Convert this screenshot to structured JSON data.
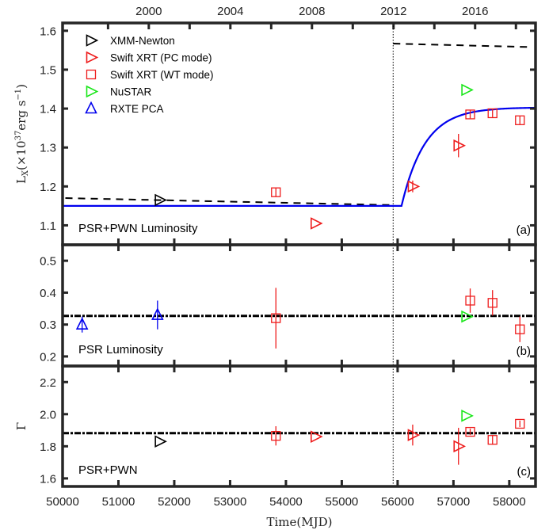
{
  "chart_data": {
    "type": "scatter",
    "xlabel": "Time(MJD)",
    "xlim": [
      50000,
      58470
    ],
    "x_ticks": [
      50000,
      51000,
      52000,
      53000,
      54000,
      55000,
      56000,
      57000,
      58000
    ],
    "x_tick_labels": [
      "50000",
      "51000",
      "52000",
      "53000",
      "54000",
      "55000",
      "56000",
      "57000",
      "58000"
    ],
    "top_axis": {
      "tick_labels": [
        "2000",
        "2004",
        "2008",
        "2012",
        "2016"
      ],
      "label_mjd": [
        51544,
        53005,
        54466,
        55927,
        57388
      ],
      "minor_tick_mjd": [
        50814,
        51544,
        52275,
        53005,
        53736,
        54466,
        55197,
        55927,
        56658,
        57388,
        58119
      ]
    },
    "event_line_mjd": 55920,
    "legend": {
      "placement": "top-left",
      "entries": [
        {
          "key": "xmm",
          "label": "XMM-Newton",
          "marker": "triangle-right",
          "color": "#000000"
        },
        {
          "key": "pc",
          "label": "Swift XRT (PC mode)",
          "marker": "triangle-right",
          "color": "#ee1c1c"
        },
        {
          "key": "wt",
          "label": "Swift XRT (WT mode)",
          "marker": "square",
          "color": "#ee1c1c"
        },
        {
          "key": "nustar",
          "label": "NuSTAR",
          "marker": "triangle-right",
          "color": "#19e619"
        },
        {
          "key": "rxte",
          "label": "RXTE PCA",
          "marker": "triangle-up",
          "color": "#0000ee"
        }
      ]
    },
    "panels": [
      {
        "id": "a",
        "panel_label": "(a)",
        "annotation": "PSR+PWN Luminosity",
        "ylabel": "L_X (×10^37 erg s^-1)",
        "ylabel_main": "L",
        "ylabel_sub": "X",
        "ylabel_rest": "(×10",
        "ylabel_exp": "37",
        "ylabel_unit": "erg s",
        "ylabel_unit_exp": "−1",
        "ylabel_close": ")",
        "ylim": [
          1.05,
          1.62
        ],
        "y_ticks": [
          1.1,
          1.2,
          1.3,
          1.4,
          1.5,
          1.6
        ],
        "y_tick_labels": [
          "1.1",
          "1.2",
          "1.3",
          "1.4",
          "1.5",
          "1.6"
        ],
        "model_curve": {
          "color": "#0000ee",
          "flat_value": 1.15,
          "break_mjd": 56070,
          "asymptote": 1.403,
          "tau_days": 420
        },
        "dashed_lines": [
          {
            "x": [
              50050,
              55920
            ],
            "y": [
              1.17,
              1.152
            ]
          },
          {
            "x": [
              55920,
              58400
            ],
            "y": [
              1.567,
              1.558
            ]
          }
        ],
        "points": [
          {
            "series": "xmm",
            "mjd": 51740,
            "y": 1.165
          },
          {
            "series": "wt",
            "mjd": 53820,
            "y": 1.185,
            "yerr": 0.012
          },
          {
            "series": "pc",
            "mjd": 54530,
            "y": 1.105
          },
          {
            "series": "pc",
            "mjd": 56270,
            "y": 1.2,
            "yerr": 0.015
          },
          {
            "series": "pc",
            "mjd": 57090,
            "y": 1.305,
            "yerr": 0.03
          },
          {
            "series": "nustar",
            "mjd": 57230,
            "y": 1.448
          },
          {
            "series": "wt",
            "mjd": 57300,
            "y": 1.385,
            "yerr": 0.01
          },
          {
            "series": "wt",
            "mjd": 57700,
            "y": 1.388,
            "yerr": 0.01
          },
          {
            "series": "wt",
            "mjd": 58190,
            "y": 1.37,
            "yerr": 0.01
          }
        ]
      },
      {
        "id": "b",
        "panel_label": "(b)",
        "annotation": "PSR Luminosity",
        "ylabel": "",
        "ylim": [
          0.17,
          0.55
        ],
        "y_ticks": [
          0.2,
          0.3,
          0.4,
          0.5
        ],
        "y_tick_labels": [
          "0.2",
          "0.3",
          "0.4",
          "0.5"
        ],
        "mean_line": 0.327,
        "points": [
          {
            "series": "rxte",
            "mjd": 50350,
            "y": 0.3,
            "yerr": 0.025
          },
          {
            "series": "rxte",
            "mjd": 51700,
            "y": 0.33,
            "yerr": 0.045
          },
          {
            "series": "wt",
            "mjd": 53820,
            "y": 0.32,
            "yerr": 0.095
          },
          {
            "series": "nustar",
            "mjd": 57230,
            "y": 0.325
          },
          {
            "series": "wt",
            "mjd": 57300,
            "y": 0.375,
            "yerr": 0.038
          },
          {
            "series": "wt",
            "mjd": 57700,
            "y": 0.368,
            "yerr": 0.04
          },
          {
            "series": "wt",
            "mjd": 58190,
            "y": 0.285,
            "yerr": 0.04
          }
        ]
      },
      {
        "id": "c",
        "panel_label": "(c)",
        "annotation": "PSR+PWN",
        "ylabel": "Γ",
        "ylim": [
          1.55,
          2.3
        ],
        "y_ticks": [
          1.6,
          1.8,
          2.0,
          2.2
        ],
        "y_tick_labels": [
          "1.6",
          "1.8",
          "2.0",
          "2.2"
        ],
        "mean_line": 1.882,
        "points": [
          {
            "series": "xmm",
            "mjd": 51740,
            "y": 1.83
          },
          {
            "series": "wt",
            "mjd": 53820,
            "y": 1.865,
            "yerr": 0.06
          },
          {
            "series": "pc",
            "mjd": 54530,
            "y": 1.86
          },
          {
            "series": "pc",
            "mjd": 56270,
            "y": 1.87,
            "yerr": 0.065
          },
          {
            "series": "pc",
            "mjd": 57090,
            "y": 1.8,
            "yerr": 0.115
          },
          {
            "series": "nustar",
            "mjd": 57230,
            "y": 1.99
          },
          {
            "series": "wt",
            "mjd": 57300,
            "y": 1.89,
            "yerr": 0.02
          },
          {
            "series": "wt",
            "mjd": 57700,
            "y": 1.84,
            "yerr": 0.03
          },
          {
            "series": "wt",
            "mjd": 58190,
            "y": 1.94,
            "yerr": 0.02
          }
        ]
      }
    ]
  }
}
